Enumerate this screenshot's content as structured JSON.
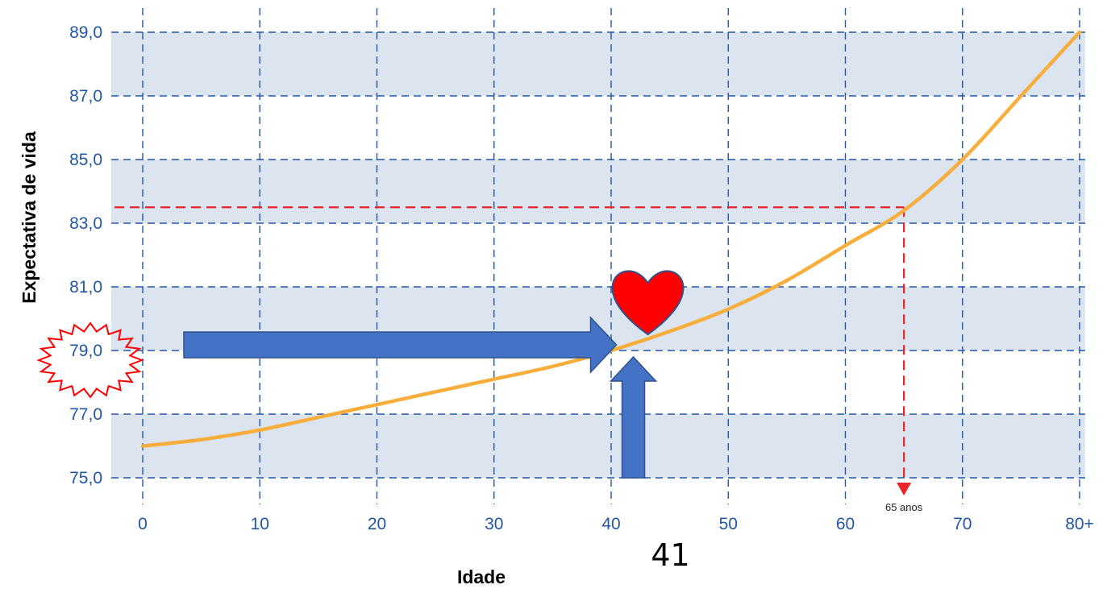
{
  "chart_data": {
    "type": "line",
    "title": "",
    "xlabel": "Idade",
    "ylabel": "Expectativa de vida",
    "x_ticks": [
      "0",
      "10",
      "20",
      "30",
      "40",
      "50",
      "60",
      "70",
      "80+"
    ],
    "y_ticks": [
      "75,0",
      "77,0",
      "79,0",
      "81,0",
      "83,0",
      "85,0",
      "87,0",
      "89,0"
    ],
    "xlim": [
      0,
      80
    ],
    "ylim": [
      75,
      89
    ],
    "grid": true,
    "series": [
      {
        "name": "",
        "color": "#f7ae3c",
        "x": [
          0,
          5,
          10,
          15,
          20,
          25,
          30,
          35,
          40,
          45,
          50,
          55,
          60,
          65,
          70,
          75,
          80
        ],
        "y": [
          76.0,
          76.2,
          76.5,
          76.9,
          77.3,
          77.7,
          78.1,
          78.5,
          79.0,
          79.6,
          80.3,
          81.2,
          82.3,
          83.4,
          85.0,
          87.0,
          89.0
        ]
      }
    ],
    "annotations": {
      "reference_age": 65,
      "reference_age_label": "65 anos",
      "reference_value": 83.5,
      "reference_color": "#e8232a",
      "highlight_age": 41,
      "highlight_age_label": "41",
      "highlight_value": 79.0,
      "arrow_color": "#4472c4",
      "marker_color": "#ff0000",
      "band_color": "#dbe4ef",
      "tick_color": "#2256a6"
    }
  }
}
